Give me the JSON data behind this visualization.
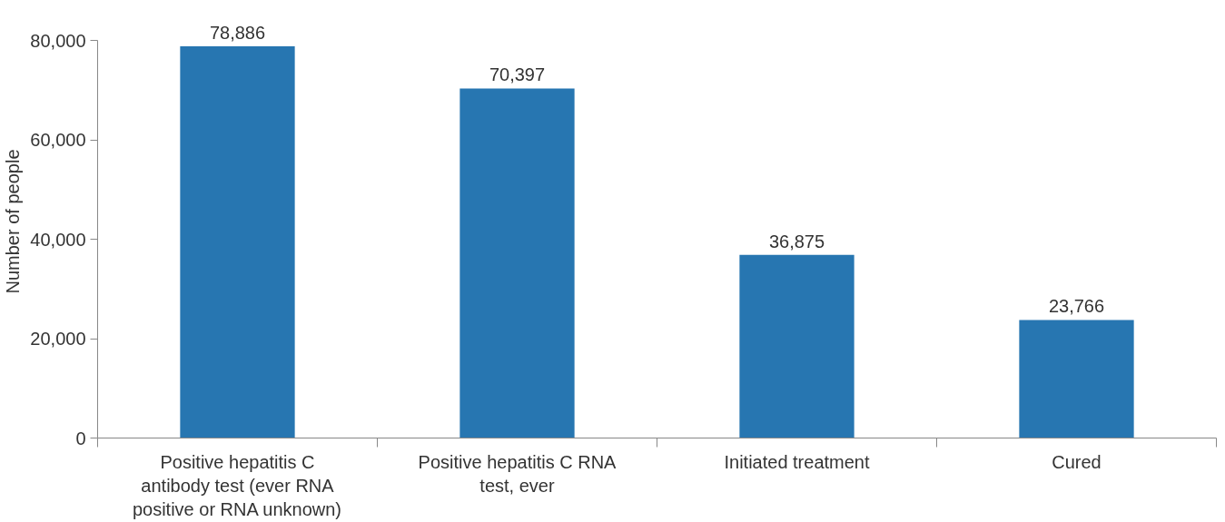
{
  "chart_data": {
    "type": "bar",
    "ylabel": "Number of people",
    "categories": [
      "Positive hepatitis C antibody test (ever RNA positive or RNA unknown)",
      "Positive hepatitis C RNA test, ever",
      "Initiated treatment",
      "Cured"
    ],
    "values": [
      78886,
      70397,
      36875,
      23766
    ],
    "color": "#2776b1",
    "ylim": [
      0,
      80000
    ],
    "yticks": [
      {
        "value": 0,
        "label": "0"
      },
      {
        "value": 20000,
        "label": "20,000"
      },
      {
        "value": 40000,
        "label": "40,000"
      },
      {
        "value": 60000,
        "label": "60,000"
      },
      {
        "value": 80000,
        "label": "80,000"
      }
    ],
    "value_labels": [
      "78,886",
      "70,397",
      "36,875",
      "23,766"
    ],
    "grid": false
  }
}
